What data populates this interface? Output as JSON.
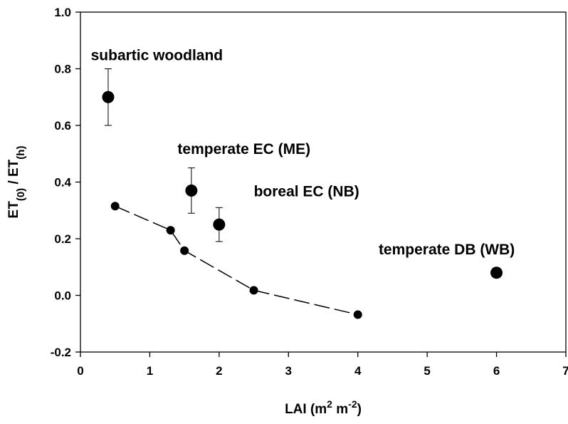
{
  "chart_data": {
    "type": "scatter",
    "xlabel": {
      "base": "LAI (m",
      "sup1": "2",
      "mid": " m",
      "sup2": "-2",
      "end": ")"
    },
    "ylabel": {
      "a": "ET",
      "sub_a": "(0)",
      "mid": " / ET",
      "sub_b": "(h)"
    },
    "xlim": [
      0,
      7
    ],
    "ylim": [
      -0.2,
      1.0
    ],
    "x_ticks": [
      0,
      1,
      2,
      3,
      4,
      5,
      6,
      7
    ],
    "x_tick_labels": [
      "0",
      "1",
      "2",
      "3",
      "4",
      "5",
      "6",
      "7"
    ],
    "y_ticks": [
      -0.2,
      0.0,
      0.2,
      0.4,
      0.6,
      0.8,
      1.0
    ],
    "y_tick_labels": [
      "-0.2",
      "0.0",
      "0.2",
      "0.4",
      "0.6",
      "0.8",
      "1.0"
    ],
    "grid": false,
    "series": [
      {
        "style": "dashed-line-small-markers",
        "color": "#000000",
        "x": [
          0.5,
          1.3,
          1.5,
          2.5,
          4.0
        ],
        "y": [
          0.315,
          0.23,
          0.158,
          0.018,
          -0.068
        ]
      },
      {
        "style": "large-markers-with-error-bars",
        "color": "#000000",
        "x": [
          0.4,
          1.6,
          2.0,
          6.0
        ],
        "y": [
          0.7,
          0.37,
          0.25,
          0.08
        ],
        "yerr": [
          0.1,
          0.08,
          0.06,
          null
        ]
      }
    ],
    "annotations": [
      {
        "text": "subartic woodland",
        "x": 0.15,
        "y": 0.85
      },
      {
        "text": "temperate EC (ME)",
        "x": 1.4,
        "y": 0.52
      },
      {
        "text": "boreal EC (NB)",
        "x": 2.5,
        "y": 0.37
      },
      {
        "text": "temperate DB (WB)",
        "x": 4.3,
        "y": 0.165
      }
    ]
  }
}
